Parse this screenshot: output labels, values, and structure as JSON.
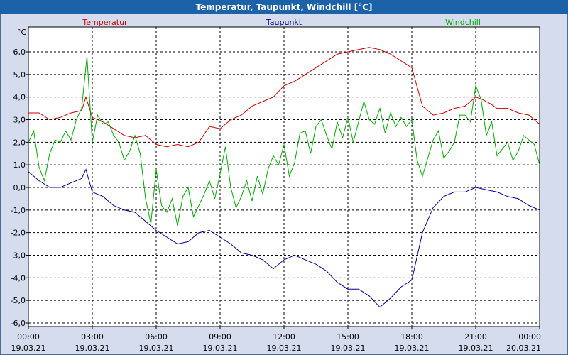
{
  "chart_data": {
    "type": "line",
    "title": "Temperatur, Taupunkt, Windchill [°C]",
    "ylabel": "°C",
    "ylim": [
      -6.0,
      7.2
    ],
    "xlim": [
      0,
      24
    ],
    "yticks": [
      6,
      5,
      4,
      3,
      2,
      1,
      0,
      -1,
      -2,
      -3,
      -4,
      -5,
      -6
    ],
    "ytick_labels": [
      "6,0",
      "5,0",
      "4,0",
      "3,0",
      "2,0",
      "1,0",
      "0,0",
      "-1,0",
      "-2,0",
      "-3,0",
      "-4,0",
      "-5,0",
      "-6,0"
    ],
    "xticks": [
      {
        "pos": 0,
        "time": "00:00",
        "date": "19.03.21"
      },
      {
        "pos": 3,
        "time": "03:00",
        "date": "19.03.21"
      },
      {
        "pos": 6,
        "time": "06:00",
        "date": "19.03.21"
      },
      {
        "pos": 9,
        "time": "09:00",
        "date": "19.03.21"
      },
      {
        "pos": 12,
        "time": "12:00",
        "date": "19.03.21"
      },
      {
        "pos": 15,
        "time": "15:00",
        "date": "19.03.21"
      },
      {
        "pos": 18,
        "time": "18:00",
        "date": "19.03.21"
      },
      {
        "pos": 21,
        "time": "21:00",
        "date": "19.03.21"
      },
      {
        "pos": 24,
        "time": "00:00",
        "date": "20.03.21"
      }
    ],
    "grid": true,
    "series": [
      {
        "name": "Temperatur",
        "color": "#cc0000",
        "x": [
          0,
          0.5,
          1,
          1.5,
          2,
          2.5,
          2.7,
          3,
          3.5,
          4,
          4.5,
          5,
          5.5,
          6,
          6.5,
          7,
          7.5,
          8,
          8.5,
          9,
          9.5,
          10,
          10.5,
          11,
          11.5,
          12,
          12.5,
          13,
          13.5,
          14,
          14.5,
          15,
          15.5,
          16,
          16.5,
          17,
          17.5,
          18,
          18.5,
          19,
          19.5,
          20,
          20.5,
          21,
          21.3,
          21.7,
          22,
          22.5,
          23,
          23.5,
          24
        ],
        "values": [
          3.3,
          3.3,
          3.0,
          3.1,
          3.3,
          3.4,
          4.0,
          3.1,
          2.9,
          2.6,
          2.3,
          2.2,
          2.3,
          1.9,
          1.8,
          1.9,
          1.8,
          2.0,
          2.7,
          2.6,
          3.0,
          3.2,
          3.6,
          3.8,
          4.0,
          4.5,
          4.7,
          5.0,
          5.3,
          5.6,
          5.9,
          6.0,
          6.1,
          6.2,
          6.1,
          5.9,
          5.6,
          5.3,
          3.6,
          3.2,
          3.3,
          3.5,
          3.6,
          4.0,
          3.9,
          3.7,
          3.5,
          3.5,
          3.3,
          3.2,
          2.8
        ]
      },
      {
        "name": "Taupunkt",
        "color": "#000099",
        "x": [
          0,
          0.5,
          1,
          1.5,
          2,
          2.5,
          2.7,
          3,
          3.5,
          4,
          4.5,
          5,
          5.5,
          6,
          6.5,
          7,
          7.5,
          8,
          8.5,
          9,
          9.5,
          10,
          10.5,
          11,
          11.5,
          12,
          12.5,
          13,
          13.5,
          14,
          14.5,
          15,
          15.5,
          16,
          16.5,
          17,
          17.5,
          18,
          18.5,
          19,
          19.5,
          20,
          20.5,
          21,
          21.5,
          22,
          22.5,
          23,
          23.5,
          24
        ],
        "values": [
          0.7,
          0.3,
          0.0,
          0.0,
          0.2,
          0.4,
          0.8,
          -0.2,
          -0.4,
          -0.8,
          -1.0,
          -1.1,
          -1.5,
          -1.9,
          -2.2,
          -2.5,
          -2.4,
          -2.0,
          -1.9,
          -2.2,
          -2.5,
          -2.9,
          -3.0,
          -3.2,
          -3.6,
          -3.2,
          -3.0,
          -3.2,
          -3.4,
          -3.7,
          -4.2,
          -4.5,
          -4.5,
          -4.8,
          -5.3,
          -4.9,
          -4.4,
          -4.1,
          -2.0,
          -0.9,
          -0.4,
          -0.2,
          -0.2,
          0.0,
          -0.1,
          -0.2,
          -0.4,
          -0.5,
          -0.8,
          -1.0
        ]
      },
      {
        "name": "Windchill",
        "color": "#00aa00",
        "x": [
          0,
          0.25,
          0.5,
          0.75,
          1,
          1.25,
          1.5,
          1.75,
          2,
          2.25,
          2.5,
          2.75,
          3,
          3.25,
          3.5,
          3.75,
          4,
          4.25,
          4.5,
          4.75,
          5,
          5.25,
          5.5,
          5.75,
          6,
          6.25,
          6.5,
          6.75,
          7,
          7.25,
          7.5,
          7.75,
          8,
          8.25,
          8.5,
          8.75,
          9,
          9.25,
          9.5,
          9.75,
          10,
          10.25,
          10.5,
          10.75,
          11,
          11.25,
          11.5,
          11.75,
          12,
          12.25,
          12.5,
          12.75,
          13,
          13.25,
          13.5,
          13.75,
          14,
          14.25,
          14.5,
          14.75,
          15,
          15.25,
          15.5,
          15.75,
          16,
          16.25,
          16.5,
          16.75,
          17,
          17.25,
          17.5,
          17.75,
          18,
          18.25,
          18.5,
          18.75,
          19,
          19.25,
          19.5,
          19.75,
          20,
          20.25,
          20.5,
          20.75,
          21,
          21.25,
          21.5,
          21.75,
          22,
          22.25,
          22.5,
          22.75,
          23,
          23.25,
          23.5,
          23.75,
          24
        ],
        "values": [
          2.0,
          2.5,
          0.9,
          0.3,
          1.5,
          2.1,
          2.0,
          2.5,
          2.1,
          3.0,
          3.5,
          5.8,
          2.0,
          3.2,
          2.8,
          2.9,
          2.3,
          2.0,
          1.2,
          1.6,
          2.3,
          1.5,
          -0.5,
          -1.6,
          0.8,
          -0.8,
          -1.1,
          -0.5,
          -1.7,
          -0.4,
          0.0,
          -1.3,
          -0.8,
          -0.3,
          0.3,
          -0.5,
          0.6,
          1.8,
          0.0,
          -0.9,
          -0.4,
          0.3,
          -0.6,
          0.5,
          -0.3,
          0.8,
          1.4,
          1.0,
          1.9,
          0.5,
          1.1,
          2.4,
          2.5,
          1.5,
          2.7,
          3.0,
          2.3,
          1.7,
          2.9,
          2.2,
          3.1,
          2.0,
          2.9,
          3.8,
          3.0,
          2.8,
          3.5,
          2.4,
          3.3,
          2.7,
          3.1,
          2.7,
          3.0,
          1.2,
          0.5,
          1.3,
          2.1,
          2.5,
          1.3,
          1.6,
          2.0,
          3.2,
          3.2,
          2.9,
          4.5,
          3.9,
          2.3,
          2.9,
          1.4,
          1.7,
          2.0,
          1.2,
          1.6,
          2.3,
          2.1,
          1.9,
          1.0
        ]
      }
    ]
  }
}
